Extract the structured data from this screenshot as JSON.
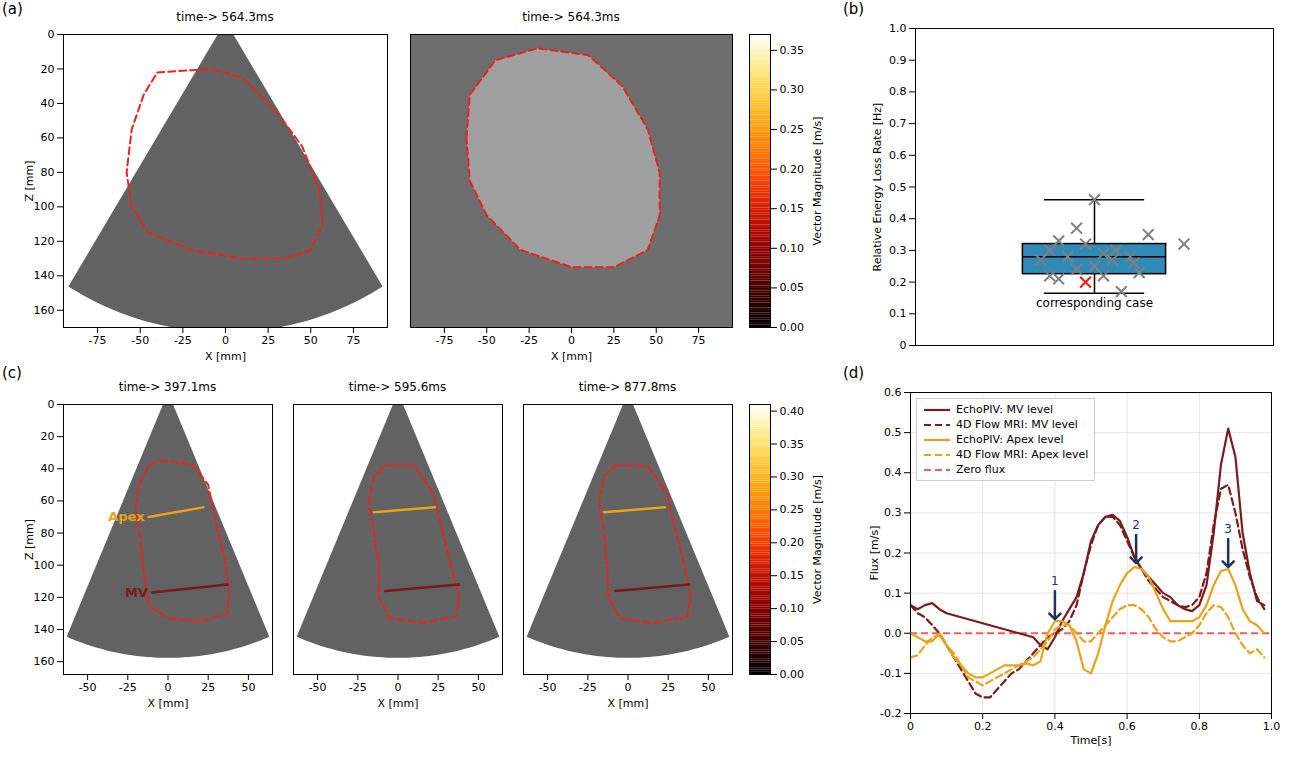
{
  "chart_data": [
    {
      "type": "ultrasound",
      "panel": "(a)",
      "title": "time-> 564.3ms",
      "x_label": "X [mm]",
      "y_label": "Z [mm]",
      "xlim": [
        -95,
        95
      ],
      "ylim": [
        0,
        170
      ],
      "xticks": [
        -75,
        -50,
        -25,
        0,
        25,
        50,
        75
      ],
      "yticks": [
        0,
        20,
        40,
        60,
        80,
        100,
        120,
        140,
        160
      ],
      "contour": {
        "x": [
          -40,
          -8,
          10,
          30,
          45,
          55,
          57,
          50,
          35,
          10,
          -20,
          -45,
          -55,
          -58,
          -55,
          -48
        ],
        "y": [
          22,
          20,
          25,
          45,
          65,
          90,
          110,
          125,
          130,
          130,
          125,
          115,
          100,
          80,
          55,
          35
        ],
        "color": "#e8241c",
        "line_style": "dashed"
      }
    },
    {
      "type": "mri",
      "title": "time-> 564.3ms",
      "x_label": "X [mm]",
      "tick_labels": "x",
      "xlim": [
        -95,
        95
      ],
      "ylim": [
        0,
        170
      ],
      "xticks": [
        -75,
        -50,
        -25,
        0,
        25,
        50,
        75
      ],
      "yticks": [
        0,
        20,
        40,
        60,
        80,
        100,
        120,
        140,
        160
      ],
      "contour": {
        "x": [
          -62,
          -60,
          -45,
          -20,
          10,
          30,
          45,
          52,
          52,
          45,
          25,
          0,
          -30,
          -50,
          -60
        ],
        "y": [
          60,
          35,
          15,
          8,
          12,
          30,
          55,
          80,
          105,
          125,
          135,
          135,
          125,
          105,
          85
        ],
        "color": "#e8241c",
        "line_style": "dashed"
      }
    },
    {
      "type": "colorbar",
      "label": "Vector Magnitude [m/s]",
      "clim": [
        0,
        0.37
      ],
      "cticks": [
        {
          "value": 0,
          "label": "0.00"
        },
        {
          "value": 0.05,
          "label": "0.05"
        },
        {
          "value": 0.1,
          "label": "0.10"
        },
        {
          "value": 0.15,
          "label": "0.15"
        },
        {
          "value": 0.2,
          "label": "0.20"
        },
        {
          "value": 0.25,
          "label": "0.25"
        },
        {
          "value": 0.3,
          "label": "0.30"
        },
        {
          "value": 0.35,
          "label": "0.35"
        }
      ]
    },
    {
      "type": "box",
      "panel": "(b)",
      "y_label": "Relative Energy Loss Rate [Hz]",
      "xlim": [
        -1,
        1
      ],
      "ylim": [
        0,
        1
      ],
      "tick_labels": "y",
      "yticks": [
        0,
        0.1,
        0.2,
        0.3,
        0.4,
        0.5,
        0.6,
        0.7,
        0.8,
        0.9,
        {
          "value": 1,
          "label": "1.0"
        }
      ],
      "color": "#2f8ab8",
      "box": {
        "whisker_low": 0.165,
        "q1": 0.225,
        "median": 0.28,
        "q3": 0.32,
        "whisker_high": 0.46
      },
      "points": {
        "x": [
          0,
          -0.1,
          0.3,
          -0.2,
          0.5,
          -0.05,
          0.12,
          -0.25,
          0.05,
          0.2,
          -0.15,
          0.1,
          -0.3,
          0.22,
          0,
          -0.1,
          0.25,
          -0.25,
          0.05,
          -0.2,
          0.15
        ],
        "y": [
          0.46,
          0.37,
          0.35,
          0.33,
          0.32,
          0.32,
          0.3,
          0.3,
          0.29,
          0.28,
          0.28,
          0.27,
          0.27,
          0.26,
          0.25,
          0.24,
          0.23,
          0.22,
          0.22,
          0.21,
          0.17
        ],
        "color": "#7f7f7f",
        "marker": "x"
      },
      "highlight": {
        "x": -0.05,
        "y": 0.2,
        "color": "#e8241c",
        "marker": "x"
      },
      "annotations": [
        {
          "text": "corresponding case",
          "x": 0,
          "y": 0.135
        }
      ]
    },
    {
      "type": "ultrasound",
      "panel": "(c)",
      "title": "time-> 397.1ms",
      "x_label": "X [mm]",
      "y_label": "Z [mm]",
      "xlim": [
        -65,
        65
      ],
      "ylim": [
        0,
        168
      ],
      "xticks": [
        -50,
        -25,
        0,
        25,
        50
      ],
      "yticks": [
        0,
        20,
        40,
        60,
        80,
        100,
        120,
        140,
        160
      ],
      "contour": {
        "x": [
          -5,
          15,
          25,
          30,
          35,
          38,
          37,
          20,
          0,
          -12,
          -15,
          -17,
          -20,
          -18,
          -12
        ],
        "y": [
          35,
          37,
          50,
          75,
          95,
          115,
          130,
          135,
          133,
          125,
          105,
          85,
          65,
          50,
          38
        ],
        "color": "#e8241c",
        "line_style": "dashed"
      },
      "lines": [
        {
          "name": "Apex",
          "x": [
            -12,
            22
          ],
          "y": [
            70,
            64
          ],
          "color": "#e8a317"
        },
        {
          "name": "MV",
          "x": [
            -10,
            37
          ],
          "y": [
            117,
            112
          ],
          "color": "#7b1c1c"
        }
      ]
    },
    {
      "type": "ultrasound",
      "title": "time-> 595.6ms",
      "x_label": "X [mm]",
      "tick_labels": "x",
      "xlim": [
        -65,
        65
      ],
      "ylim": [
        0,
        168
      ],
      "xticks": [
        -50,
        -25,
        0,
        25,
        50
      ],
      "yticks": [
        0,
        20,
        40,
        60,
        80,
        100,
        120,
        140,
        160
      ],
      "contour": {
        "x": [
          -8,
          10,
          22,
          28,
          33,
          38,
          36,
          15,
          -5,
          -12,
          -12,
          -15,
          -18,
          -15
        ],
        "y": [
          38,
          38,
          55,
          80,
          100,
          120,
          132,
          136,
          133,
          120,
          100,
          80,
          60,
          45
        ],
        "color": "#e8241c",
        "line_style": "dashed"
      },
      "lines": [
        {
          "x": [
            -15,
            23
          ],
          "y": [
            67,
            64
          ],
          "color": "#e8a317"
        },
        {
          "x": [
            -8,
            38
          ],
          "y": [
            116,
            112
          ],
          "color": "#7b1c1c"
        }
      ]
    },
    {
      "type": "ultrasound",
      "title": "time-> 877.8ms",
      "x_label": "X [mm]",
      "tick_labels": "x",
      "xlim": [
        -65,
        65
      ],
      "ylim": [
        0,
        168
      ],
      "xticks": [
        -50,
        -25,
        0,
        25,
        50
      ],
      "yticks": [
        0,
        20,
        40,
        60,
        80,
        100,
        120,
        140,
        160
      ],
      "contour": {
        "x": [
          -8,
          12,
          24,
          30,
          35,
          39,
          37,
          15,
          -5,
          -12,
          -13,
          -15,
          -18,
          -15
        ],
        "y": [
          38,
          38,
          55,
          80,
          100,
          120,
          132,
          136,
          133,
          120,
          100,
          80,
          60,
          45
        ],
        "color": "#e8241c",
        "line_style": "dashed"
      },
      "lines": [
        {
          "x": [
            -15,
            23
          ],
          "y": [
            67,
            64
          ],
          "color": "#e8a317"
        },
        {
          "x": [
            -8,
            38
          ],
          "y": [
            116,
            112
          ],
          "color": "#7b1c1c"
        }
      ]
    },
    {
      "type": "colorbar",
      "label": "Vector Magnitude [m/s]",
      "clim": [
        0,
        0.41
      ],
      "cticks": [
        {
          "value": 0,
          "label": "0.00"
        },
        {
          "value": 0.05,
          "label": "0.05"
        },
        {
          "value": 0.1,
          "label": "0.10"
        },
        {
          "value": 0.15,
          "label": "0.15"
        },
        {
          "value": 0.2,
          "label": "0.20"
        },
        {
          "value": 0.25,
          "label": "0.25"
        },
        {
          "value": 0.3,
          "label": "0.30"
        },
        {
          "value": 0.35,
          "label": "0.35"
        },
        {
          "value": 0.4,
          "label": "0.40"
        }
      ]
    },
    {
      "type": "line",
      "panel": "(d)",
      "x_label": "Time[s]",
      "y_label": "Flux [m/s]",
      "grid": true,
      "legend": "top-left",
      "xlim": [
        0,
        1
      ],
      "ylim": [
        -0.2,
        0.6
      ],
      "xticks": [
        0,
        0.2,
        0.4,
        0.6,
        0.8,
        {
          "value": 1,
          "label": "1.0"
        }
      ],
      "yticks": [
        -0.2,
        -0.1,
        {
          "value": 0,
          "label": "0.0"
        },
        0.1,
        0.2,
        0.3,
        0.4,
        0.5,
        0.6
      ],
      "x": [
        0,
        0.02,
        0.04,
        0.06,
        0.08,
        0.1,
        0.12,
        0.14,
        0.16,
        0.18,
        0.2,
        0.22,
        0.24,
        0.26,
        0.28,
        0.3,
        0.32,
        0.34,
        0.36,
        0.38,
        0.4,
        0.42,
        0.44,
        0.46,
        0.48,
        0.5,
        0.52,
        0.54,
        0.56,
        0.58,
        0.6,
        0.62,
        0.64,
        0.66,
        0.68,
        0.7,
        0.72,
        0.74,
        0.76,
        0.78,
        0.8,
        0.82,
        0.84,
        0.86,
        0.88,
        0.9,
        0.92,
        0.94,
        0.96,
        0.98
      ],
      "series": [
        {
          "name": "EchoPIV: MV level",
          "color": "#7b1c1c",
          "line_style": "solid",
          "values": [
            0.07,
            0.06,
            0.07,
            0.075,
            0.06,
            0.05,
            0.045,
            0.04,
            0.035,
            0.03,
            0.025,
            0.02,
            0.015,
            0.01,
            0.005,
            0.0,
            -0.005,
            -0.01,
            -0.03,
            -0.04,
            -0.01,
            0.03,
            0.06,
            0.09,
            0.15,
            0.23,
            0.27,
            0.29,
            0.295,
            0.28,
            0.24,
            0.19,
            0.16,
            0.14,
            0.12,
            0.1,
            0.09,
            0.07,
            0.06,
            0.055,
            0.07,
            0.12,
            0.25,
            0.42,
            0.51,
            0.44,
            0.25,
            0.15,
            0.08,
            0.07
          ]
        },
        {
          "name": "4D Flow MRI: MV level",
          "color": "#7b1c1c",
          "line_style": "dashed",
          "values": [
            0.07,
            0.05,
            0.04,
            0.02,
            0.0,
            -0.03,
            -0.06,
            -0.09,
            -0.12,
            -0.15,
            -0.16,
            -0.16,
            -0.14,
            -0.12,
            -0.1,
            -0.09,
            -0.07,
            -0.05,
            -0.03,
            -0.01,
            0.0,
            0.01,
            0.03,
            0.07,
            0.15,
            0.22,
            0.27,
            0.29,
            0.29,
            0.27,
            0.23,
            0.19,
            0.16,
            0.13,
            0.11,
            0.09,
            0.08,
            0.07,
            0.065,
            0.07,
            0.09,
            0.15,
            0.27,
            0.36,
            0.37,
            0.3,
            0.21,
            0.14,
            0.09,
            0.06
          ]
        },
        {
          "name": "EchoPIV: Apex level",
          "color": "#e8a317",
          "line_style": "solid",
          "values": [
            0.0,
            -0.01,
            -0.02,
            -0.02,
            0.0,
            -0.03,
            -0.06,
            -0.08,
            -0.1,
            -0.11,
            -0.11,
            -0.1,
            -0.09,
            -0.08,
            -0.08,
            -0.08,
            -0.075,
            -0.08,
            -0.07,
            0.0,
            0.03,
            0.03,
            0.02,
            -0.02,
            -0.09,
            -0.1,
            -0.05,
            0.02,
            0.08,
            0.12,
            0.15,
            0.165,
            0.16,
            0.14,
            0.1,
            0.06,
            0.03,
            0.03,
            0.03,
            0.03,
            0.04,
            0.07,
            0.12,
            0.155,
            0.16,
            0.12,
            0.06,
            0.03,
            0.02,
            0.0
          ]
        },
        {
          "name": "4D Flow MRI: Apex level",
          "color": "#e8a317",
          "line_style": "dashed",
          "values": [
            -0.06,
            -0.055,
            -0.03,
            -0.01,
            -0.005,
            -0.03,
            -0.05,
            -0.08,
            -0.11,
            -0.12,
            -0.13,
            -0.12,
            -0.11,
            -0.1,
            -0.09,
            -0.08,
            -0.07,
            -0.06,
            -0.04,
            -0.02,
            0.01,
            0.02,
            0.02,
            0.0,
            -0.02,
            -0.02,
            0.0,
            0.02,
            0.04,
            0.06,
            0.07,
            0.07,
            0.06,
            0.04,
            0.01,
            -0.01,
            -0.02,
            -0.02,
            -0.01,
            0.0,
            0.02,
            0.05,
            0.07,
            0.065,
            0.04,
            0.0,
            -0.03,
            -0.05,
            -0.04,
            -0.06
          ]
        }
      ],
      "reference_lines": [
        {
          "name": "Zero flux",
          "y": 0,
          "color": "#ff5a5a",
          "line_style": "dashed"
        }
      ],
      "annotations": [
        {
          "text": "1",
          "x": 0.4,
          "y": 0.035
        },
        {
          "text": "2",
          "x": 0.625,
          "y": 0.175
        },
        {
          "text": "3",
          "x": 0.88,
          "y": 0.165
        }
      ]
    }
  ]
}
